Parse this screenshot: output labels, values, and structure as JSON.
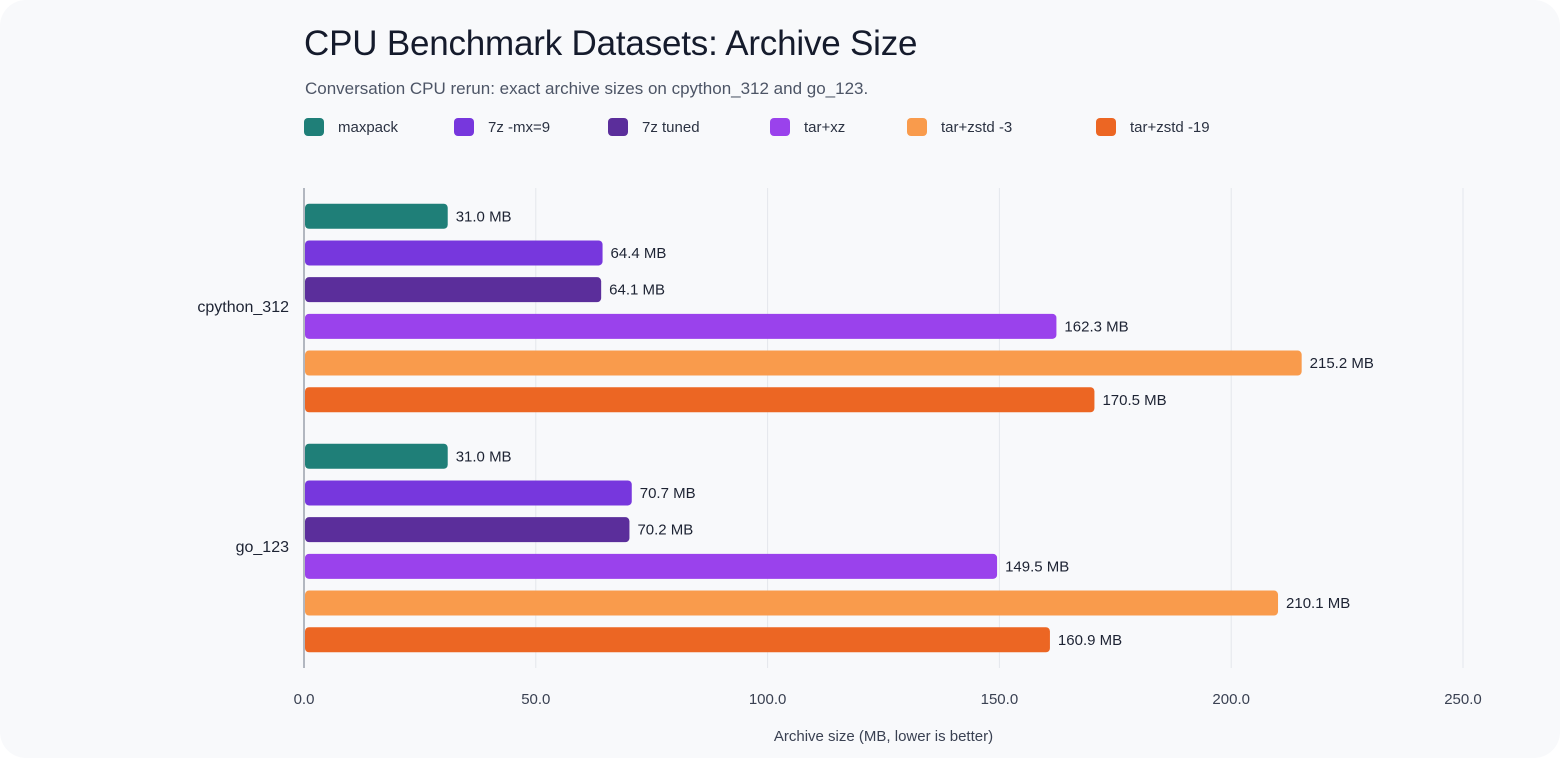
{
  "chart_data": {
    "type": "bar",
    "orientation": "horizontal",
    "title": "CPU Benchmark Datasets: Archive Size",
    "subtitle": "Conversation CPU rerun: exact archive sizes on cpython_312 and go_123.",
    "xlabel": "Archive size (MB, lower is better)",
    "ylabel": "",
    "xlim": [
      0,
      250
    ],
    "xticks": [
      "0.0",
      "50.0",
      "100.0",
      "150.0",
      "200.0",
      "250.0"
    ],
    "grid": true,
    "legend_position": "top-left",
    "value_suffix": " MB",
    "categories": [
      "cpython_312",
      "go_123"
    ],
    "series": [
      {
        "name": "maxpack",
        "color": "#1f7f78",
        "values": [
          31.0,
          31.0
        ]
      },
      {
        "name": "7z -mx=9",
        "color": "#7737dd",
        "values": [
          64.4,
          70.7
        ]
      },
      {
        "name": "7z tuned",
        "color": "#5b2e9b",
        "values": [
          64.1,
          70.2
        ]
      },
      {
        "name": "tar+xz",
        "color": "#9a42ec",
        "values": [
          162.3,
          149.5
        ]
      },
      {
        "name": "tar+zstd -3",
        "color": "#f99b4c",
        "values": [
          215.2,
          210.1
        ]
      },
      {
        "name": "tar+zstd -19",
        "color": "#ec6623",
        "values": [
          170.5,
          160.9
        ]
      }
    ]
  }
}
